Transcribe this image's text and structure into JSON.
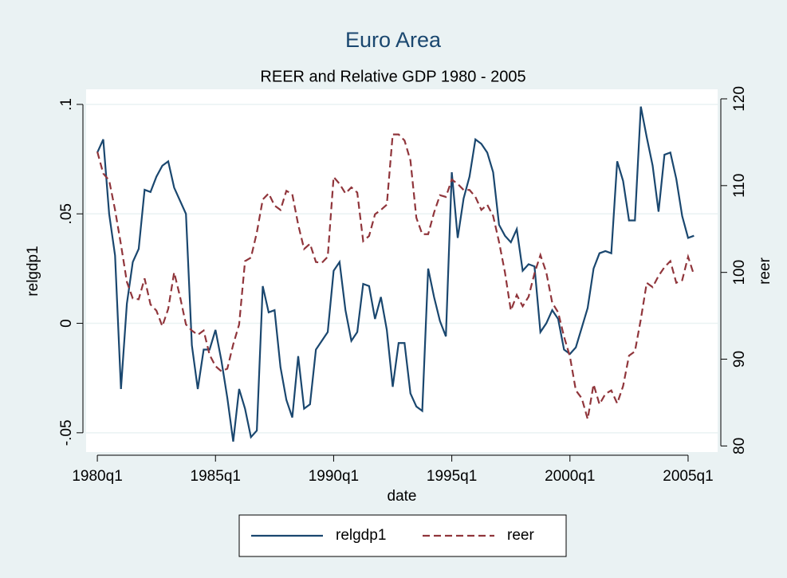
{
  "chart_data": {
    "type": "line",
    "title": "Euro Area",
    "subtitle": "REER and Relative GDP 1980 - 2005",
    "xlabel": "date",
    "ylabel": "relgdp1",
    "y2label": "reer",
    "x": [
      80,
      81,
      82,
      83,
      84,
      85,
      86,
      87,
      88,
      89,
      90,
      91,
      92,
      93,
      94,
      95,
      96,
      97,
      98,
      99,
      100,
      101,
      102,
      103,
      104,
      105,
      106,
      107,
      108,
      109,
      110,
      111,
      112,
      113,
      114,
      115,
      116,
      117,
      118,
      119,
      120,
      121,
      122,
      123,
      124,
      125,
      126,
      127,
      128,
      129,
      130,
      131,
      132,
      133,
      134,
      135,
      136,
      137,
      138,
      139,
      140,
      141,
      142,
      143,
      144,
      145,
      146,
      147,
      148,
      149,
      150,
      151,
      152,
      153,
      154,
      155,
      156,
      157,
      158,
      159,
      160,
      161,
      162,
      163,
      164,
      165,
      166,
      167,
      168,
      169,
      170,
      171,
      172,
      173,
      174,
      175,
      176,
      177,
      178,
      179,
      180,
      181
    ],
    "xlim": [
      78.1,
      185
    ],
    "xticks": [
      {
        "value": 80,
        "label": "1980q1"
      },
      {
        "value": 100,
        "label": "1985q1"
      },
      {
        "value": 120,
        "label": "1990q1"
      },
      {
        "value": 140,
        "label": "1995q1"
      },
      {
        "value": 160,
        "label": "2000q1"
      },
      {
        "value": 180,
        "label": "2005q1"
      }
    ],
    "ylim": [
      -0.0588,
      0.1069
    ],
    "yticks": [
      {
        "value": -0.05,
        "label": "-.05"
      },
      0,
      {
        "value": 0.05,
        "label": ".05"
      },
      {
        "value": 0.1,
        "label": ".1"
      }
    ],
    "y2lim": [
      79.3,
      121.1
    ],
    "y2ticks": [
      80,
      90,
      100,
      110,
      120
    ],
    "grid": true,
    "legend": "bottom",
    "series": [
      {
        "name": "relgdp1",
        "color": "#1a476f",
        "dash": false,
        "values": [
          0.078,
          0.084,
          0.05,
          0.031,
          -0.03,
          0.009,
          0.028,
          0.034,
          0.061,
          0.06,
          0.067,
          0.072,
          0.074,
          0.062,
          0.056,
          0.05,
          -0.01,
          -0.03,
          -0.012,
          -0.012,
          -0.003,
          -0.017,
          -0.034,
          -0.054,
          -0.03,
          -0.039,
          -0.052,
          -0.049,
          0.017,
          0.005,
          0.006,
          -0.02,
          -0.035,
          -0.043,
          -0.015,
          -0.039,
          -0.037,
          -0.012,
          -0.008,
          -0.004,
          0.024,
          0.028,
          0.006,
          -0.008,
          -0.004,
          0.018,
          0.017,
          0.002,
          0.012,
          -0.003,
          -0.029,
          -0.009,
          -0.009,
          -0.032,
          -0.038,
          -0.04,
          0.025,
          0.012,
          0.001,
          -0.006,
          0.069,
          0.039,
          0.057,
          0.067,
          0.084,
          0.082,
          0.078,
          0.069,
          0.045,
          0.04,
          0.037,
          0.043,
          0.024,
          0.027,
          0.026,
          -0.004,
          0.0,
          0.006,
          0.002,
          -0.012,
          -0.014,
          -0.011,
          -0.002,
          0.007,
          0.025,
          0.032,
          0.033,
          0.032,
          0.074,
          0.065,
          0.047,
          0.047,
          0.099,
          0.085,
          0.072,
          0.051,
          0.077,
          0.078,
          0.066,
          0.049,
          0.039,
          0.04
        ]
      },
      {
        "name": "reer",
        "color": "#90353b",
        "dash": true,
        "axis": "y2",
        "values": [
          113.9,
          111.4,
          110.6,
          107.2,
          103.2,
          98.9,
          97.0,
          96.9,
          99.3,
          96.3,
          95.6,
          93.8,
          95.8,
          100.0,
          97.2,
          94.0,
          93.3,
          92.8,
          93.3,
          90.5,
          89.2,
          88.6,
          88.9,
          91.7,
          94.0,
          101.3,
          101.7,
          104.6,
          108.4,
          109.1,
          107.7,
          107.2,
          109.4,
          109.0,
          105.5,
          102.7,
          103.3,
          101.2,
          101.1,
          101.8,
          111.0,
          110.2,
          109.1,
          109.8,
          109.2,
          103.6,
          104.2,
          106.7,
          107.2,
          107.8,
          115.9,
          115.9,
          115.2,
          112.9,
          106.3,
          104.4,
          104.4,
          106.9,
          108.9,
          108.7,
          110.7,
          110.2,
          109.5,
          109.5,
          108.7,
          107.2,
          107.8,
          106.5,
          103.5,
          100.0,
          95.6,
          97.4,
          96.1,
          97.2,
          99.9,
          102.0,
          100.0,
          96.5,
          95.4,
          92.6,
          90.3,
          86.4,
          85.5,
          83.1,
          87.1,
          84.8,
          86.0,
          86.4,
          84.9,
          86.9,
          90.4,
          90.9,
          94.6,
          98.8,
          98.3,
          99.6,
          100.6,
          101.3,
          98.8,
          99.1,
          101.8,
          99.7
        ]
      }
    ]
  }
}
